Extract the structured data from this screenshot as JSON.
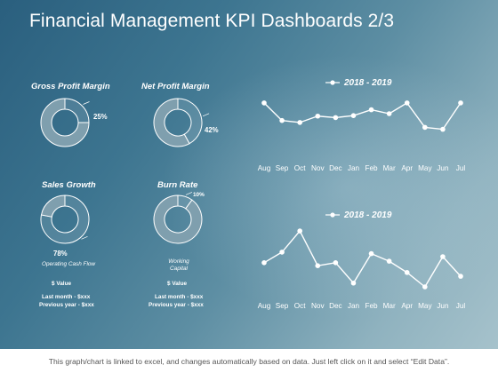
{
  "title": "Financial Management KPI Dashboards 2/3",
  "footer": "This graph/chart is linked to excel, and changes automatically based on data. Just left click on it and select “Edit Data”.",
  "kpis": {
    "gross": {
      "title": "Gross Profit Margin",
      "label": "25%"
    },
    "net": {
      "title": "Net Profit Margin",
      "label": "42%"
    },
    "sales": {
      "title": "Sales Growth",
      "label": "78%",
      "caption": "Operating Cash Flow",
      "value_label": "$ Value",
      "last_month": "Last month - $xxx",
      "previous_year": "Previous year - $xxx"
    },
    "burn": {
      "title": "Burn Rate",
      "label": "10%",
      "caption": "Working Capital",
      "value_label": "$ Value",
      "last_month": "Last month - $xxx",
      "previous_year": "Previous year - $xxx"
    }
  },
  "colors": {
    "white": "#ffffff",
    "ring_fill": "#7f9fae",
    "ring_stroke": "#ffffff"
  },
  "chart_data": [
    {
      "type": "pie",
      "title": "Gross Profit Margin",
      "values": [
        25,
        75
      ],
      "data_labels": [
        "25%"
      ]
    },
    {
      "type": "pie",
      "title": "Net Profit Margin",
      "values": [
        42,
        58
      ],
      "data_labels": [
        "42%"
      ]
    },
    {
      "type": "pie",
      "title": "Sales Growth",
      "values": [
        78,
        22
      ],
      "data_labels": [
        "78%"
      ]
    },
    {
      "type": "pie",
      "title": "Burn Rate",
      "values": [
        10,
        90
      ],
      "data_labels": [
        "10%"
      ]
    },
    {
      "type": "line",
      "categories": [
        "Aug",
        "Sep",
        "Oct",
        "Nov",
        "Dec",
        "Jan",
        "Feb",
        "Mar",
        "Apr",
        "May",
        "Jun",
        "Jul"
      ],
      "series": [
        {
          "name": "2018 - 2019",
          "values": [
            8.2,
            4.6,
            4.2,
            5.5,
            5.2,
            5.6,
            6.8,
            6.0,
            8.2,
            3.2,
            2.8,
            8.2
          ]
        }
      ],
      "ylim": [
        0,
        10
      ],
      "legend": "top"
    },
    {
      "type": "line",
      "categories": [
        "Aug",
        "Sep",
        "Oct",
        "Nov",
        "Dec",
        "Jan",
        "Feb",
        "Mar",
        "Apr",
        "May",
        "Jun",
        "Jul"
      ],
      "series": [
        {
          "name": "2018 - 2019",
          "values": [
            5.2,
            6.6,
            9.4,
            4.8,
            5.2,
            2.5,
            6.4,
            5.4,
            3.9,
            2.0,
            6.0,
            3.4
          ]
        }
      ],
      "ylim": [
        0,
        10
      ],
      "legend": "top"
    }
  ]
}
